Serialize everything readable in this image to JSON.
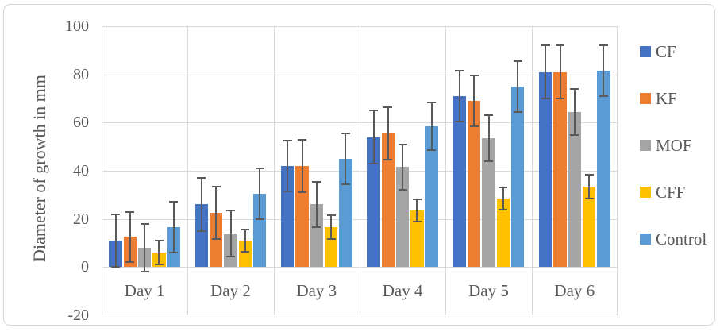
{
  "chart_data": {
    "type": "bar",
    "title": "",
    "xlabel": "",
    "ylabel": "Diameter of growth in mm",
    "categories": [
      "Day 1",
      "Day 2",
      "Day 3",
      "Day 4",
      "Day 5",
      "Day 6"
    ],
    "series": [
      {
        "name": "CF",
        "color": "#4472C4",
        "values": [
          11,
          26,
          42,
          54,
          71,
          81
        ],
        "errors": [
          11,
          11,
          10.5,
          11,
          10.5,
          11
        ]
      },
      {
        "name": "KF",
        "color": "#ED7D31",
        "values": [
          12.5,
          22.5,
          42,
          55.5,
          69,
          81
        ],
        "errors": [
          10.5,
          11,
          11,
          11,
          10.5,
          11
        ]
      },
      {
        "name": "MOF",
        "color": "#A5A5A5",
        "values": [
          8,
          14,
          26,
          41.5,
          53.5,
          64.5
        ],
        "errors": [
          10,
          9.5,
          9.5,
          9.5,
          9.5,
          9.5
        ]
      },
      {
        "name": "CFF",
        "color": "#FFC000",
        "values": [
          6,
          11,
          16.5,
          23.5,
          28.5,
          33.5
        ],
        "errors": [
          5,
          4.5,
          5,
          4.5,
          4.5,
          5
        ]
      },
      {
        "name": "Control",
        "color": "#5B9BD5",
        "values": [
          16.5,
          30.5,
          45,
          58.5,
          75,
          81.5
        ],
        "errors": [
          10.5,
          10.5,
          10.5,
          10,
          10.5,
          10.5
        ]
      }
    ],
    "y_axis": {
      "min": -20,
      "max": 100,
      "tick_step": 20,
      "tick_labels": [
        "100",
        "80",
        "60",
        "40",
        "20",
        "0",
        "-20"
      ]
    },
    "grid": true,
    "error_bars": true,
    "legend_position": "right"
  },
  "styles": {
    "background": "#FFFFFF",
    "axis_text_color": "#595959",
    "gridline_color": "#D9D9D9",
    "error_bar_color": "#595959",
    "frame_border_color": "#D6D6D6"
  }
}
